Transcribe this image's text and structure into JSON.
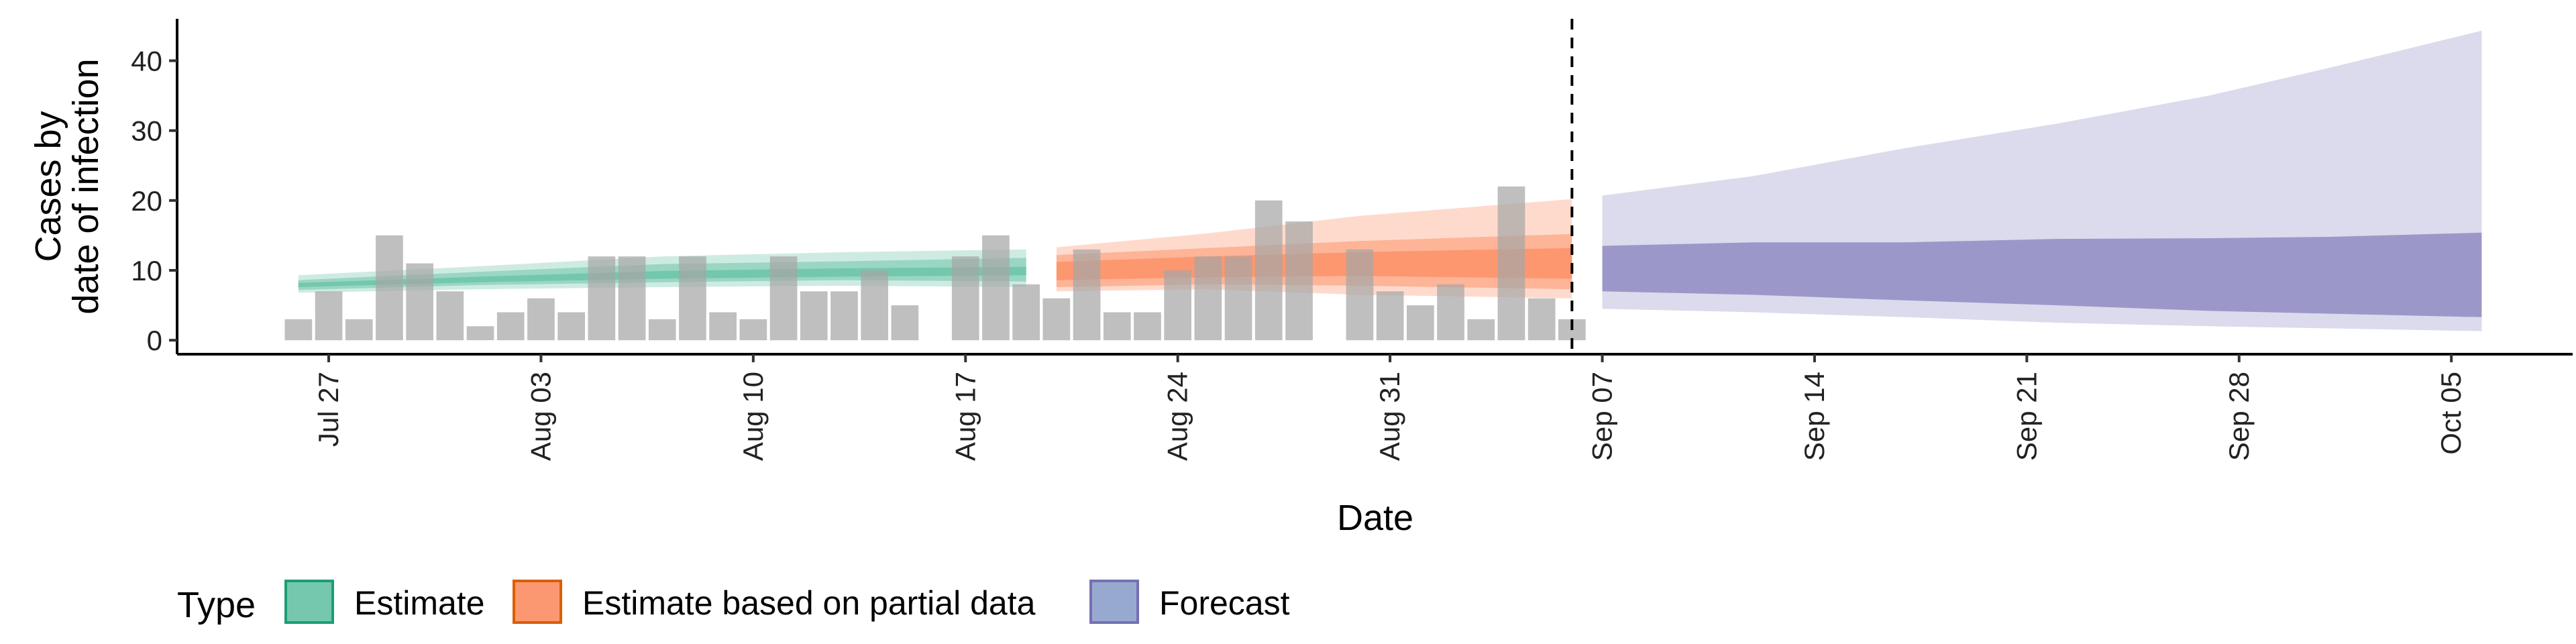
{
  "chart_data": {
    "type": "area",
    "title": "",
    "xlabel": "Date",
    "ylabel_lines": [
      "Cases by",
      "date of infection"
    ],
    "x_range": [
      "2020-07-22",
      "2020-10-09"
    ],
    "ylim": [
      -2,
      46
    ],
    "y_ticks": [
      0,
      10,
      20,
      30,
      40
    ],
    "x_ticks": [
      {
        "date": "2020-07-27",
        "label": "Jul 27"
      },
      {
        "date": "2020-08-03",
        "label": "Aug 03"
      },
      {
        "date": "2020-08-10",
        "label": "Aug 10"
      },
      {
        "date": "2020-08-17",
        "label": "Aug 17"
      },
      {
        "date": "2020-08-24",
        "label": "Aug 24"
      },
      {
        "date": "2020-08-31",
        "label": "Aug 31"
      },
      {
        "date": "2020-09-07",
        "label": "Sep 07"
      },
      {
        "date": "2020-09-14",
        "label": "Sep 14"
      },
      {
        "date": "2020-09-21",
        "label": "Sep 21"
      },
      {
        "date": "2020-09-28",
        "label": "Sep 28"
      },
      {
        "date": "2020-10-05",
        "label": "Oct 05"
      }
    ],
    "vline_date": "2020-09-06",
    "grid": false,
    "legend_position": "bottom-left",
    "legend_title": "Type",
    "bars": {
      "color": "#a6a6a6",
      "start_date": "2020-07-26",
      "values": [
        3,
        7,
        3,
        15,
        11,
        7,
        2,
        4,
        6,
        4,
        12,
        12,
        3,
        12,
        4,
        3,
        12,
        7,
        7,
        10,
        5,
        0,
        12,
        15,
        8,
        6,
        13,
        4,
        4,
        10,
        12,
        12,
        20,
        17,
        0,
        13,
        7,
        5,
        8,
        3,
        22,
        6,
        3
      ]
    },
    "series": [
      {
        "name": "Estimate",
        "fill": "#66c2a5",
        "edge": "#1b9e77",
        "dates": [
          "2020-07-26",
          "2020-08-01",
          "2020-08-07",
          "2020-08-13",
          "2020-08-19"
        ],
        "outer": [
          [
            6.8,
            9.3
          ],
          [
            7.3,
            10.6
          ],
          [
            7.6,
            12.0
          ],
          [
            7.8,
            12.6
          ],
          [
            7.6,
            13.0
          ]
        ],
        "mid": [
          [
            7.2,
            8.6
          ],
          [
            7.9,
            9.8
          ],
          [
            8.3,
            10.9
          ],
          [
            8.6,
            11.3
          ],
          [
            8.4,
            11.8
          ]
        ],
        "inner": [
          [
            7.6,
            8.2
          ],
          [
            8.3,
            9.1
          ],
          [
            8.8,
            9.9
          ],
          [
            9.1,
            10.3
          ],
          [
            9.3,
            10.5
          ]
        ]
      },
      {
        "name": "Estimate based on partial data",
        "fill": "#fc8d62",
        "edge": "#d95f02",
        "dates": [
          "2020-08-20",
          "2020-08-25",
          "2020-08-30",
          "2020-09-06"
        ],
        "outer": [
          [
            7.0,
            13.3
          ],
          [
            7.3,
            15.3
          ],
          [
            6.5,
            17.8
          ],
          [
            6.0,
            20.2
          ]
        ],
        "mid": [
          [
            7.6,
            12.2
          ],
          [
            8.0,
            13.2
          ],
          [
            7.8,
            14.2
          ],
          [
            7.3,
            15.2
          ]
        ],
        "inner": [
          [
            8.6,
            11.2
          ],
          [
            9.0,
            12.0
          ],
          [
            9.2,
            12.6
          ],
          [
            8.8,
            13.2
          ]
        ]
      },
      {
        "name": "Forecast",
        "fill": "#8da0cb",
        "band_fill": "#7570b3",
        "edge": "#7570b3",
        "dates": [
          "2020-09-07",
          "2020-09-12",
          "2020-09-17",
          "2020-09-22",
          "2020-09-27",
          "2020-10-01",
          "2020-10-06"
        ],
        "outer": [
          [
            4.5,
            20.7
          ],
          [
            4.0,
            23.5
          ],
          [
            3.3,
            27.5
          ],
          [
            2.5,
            31.0
          ],
          [
            2.0,
            35.0
          ],
          [
            1.7,
            39.0
          ],
          [
            1.3,
            44.3
          ]
        ],
        "mid": [
          [
            7.0,
            13.5
          ],
          [
            6.5,
            14.0
          ],
          [
            5.7,
            14.0
          ],
          [
            5.0,
            14.5
          ],
          [
            4.2,
            14.6
          ],
          [
            3.8,
            14.8
          ],
          [
            3.3,
            15.4
          ]
        ]
      }
    ]
  }
}
